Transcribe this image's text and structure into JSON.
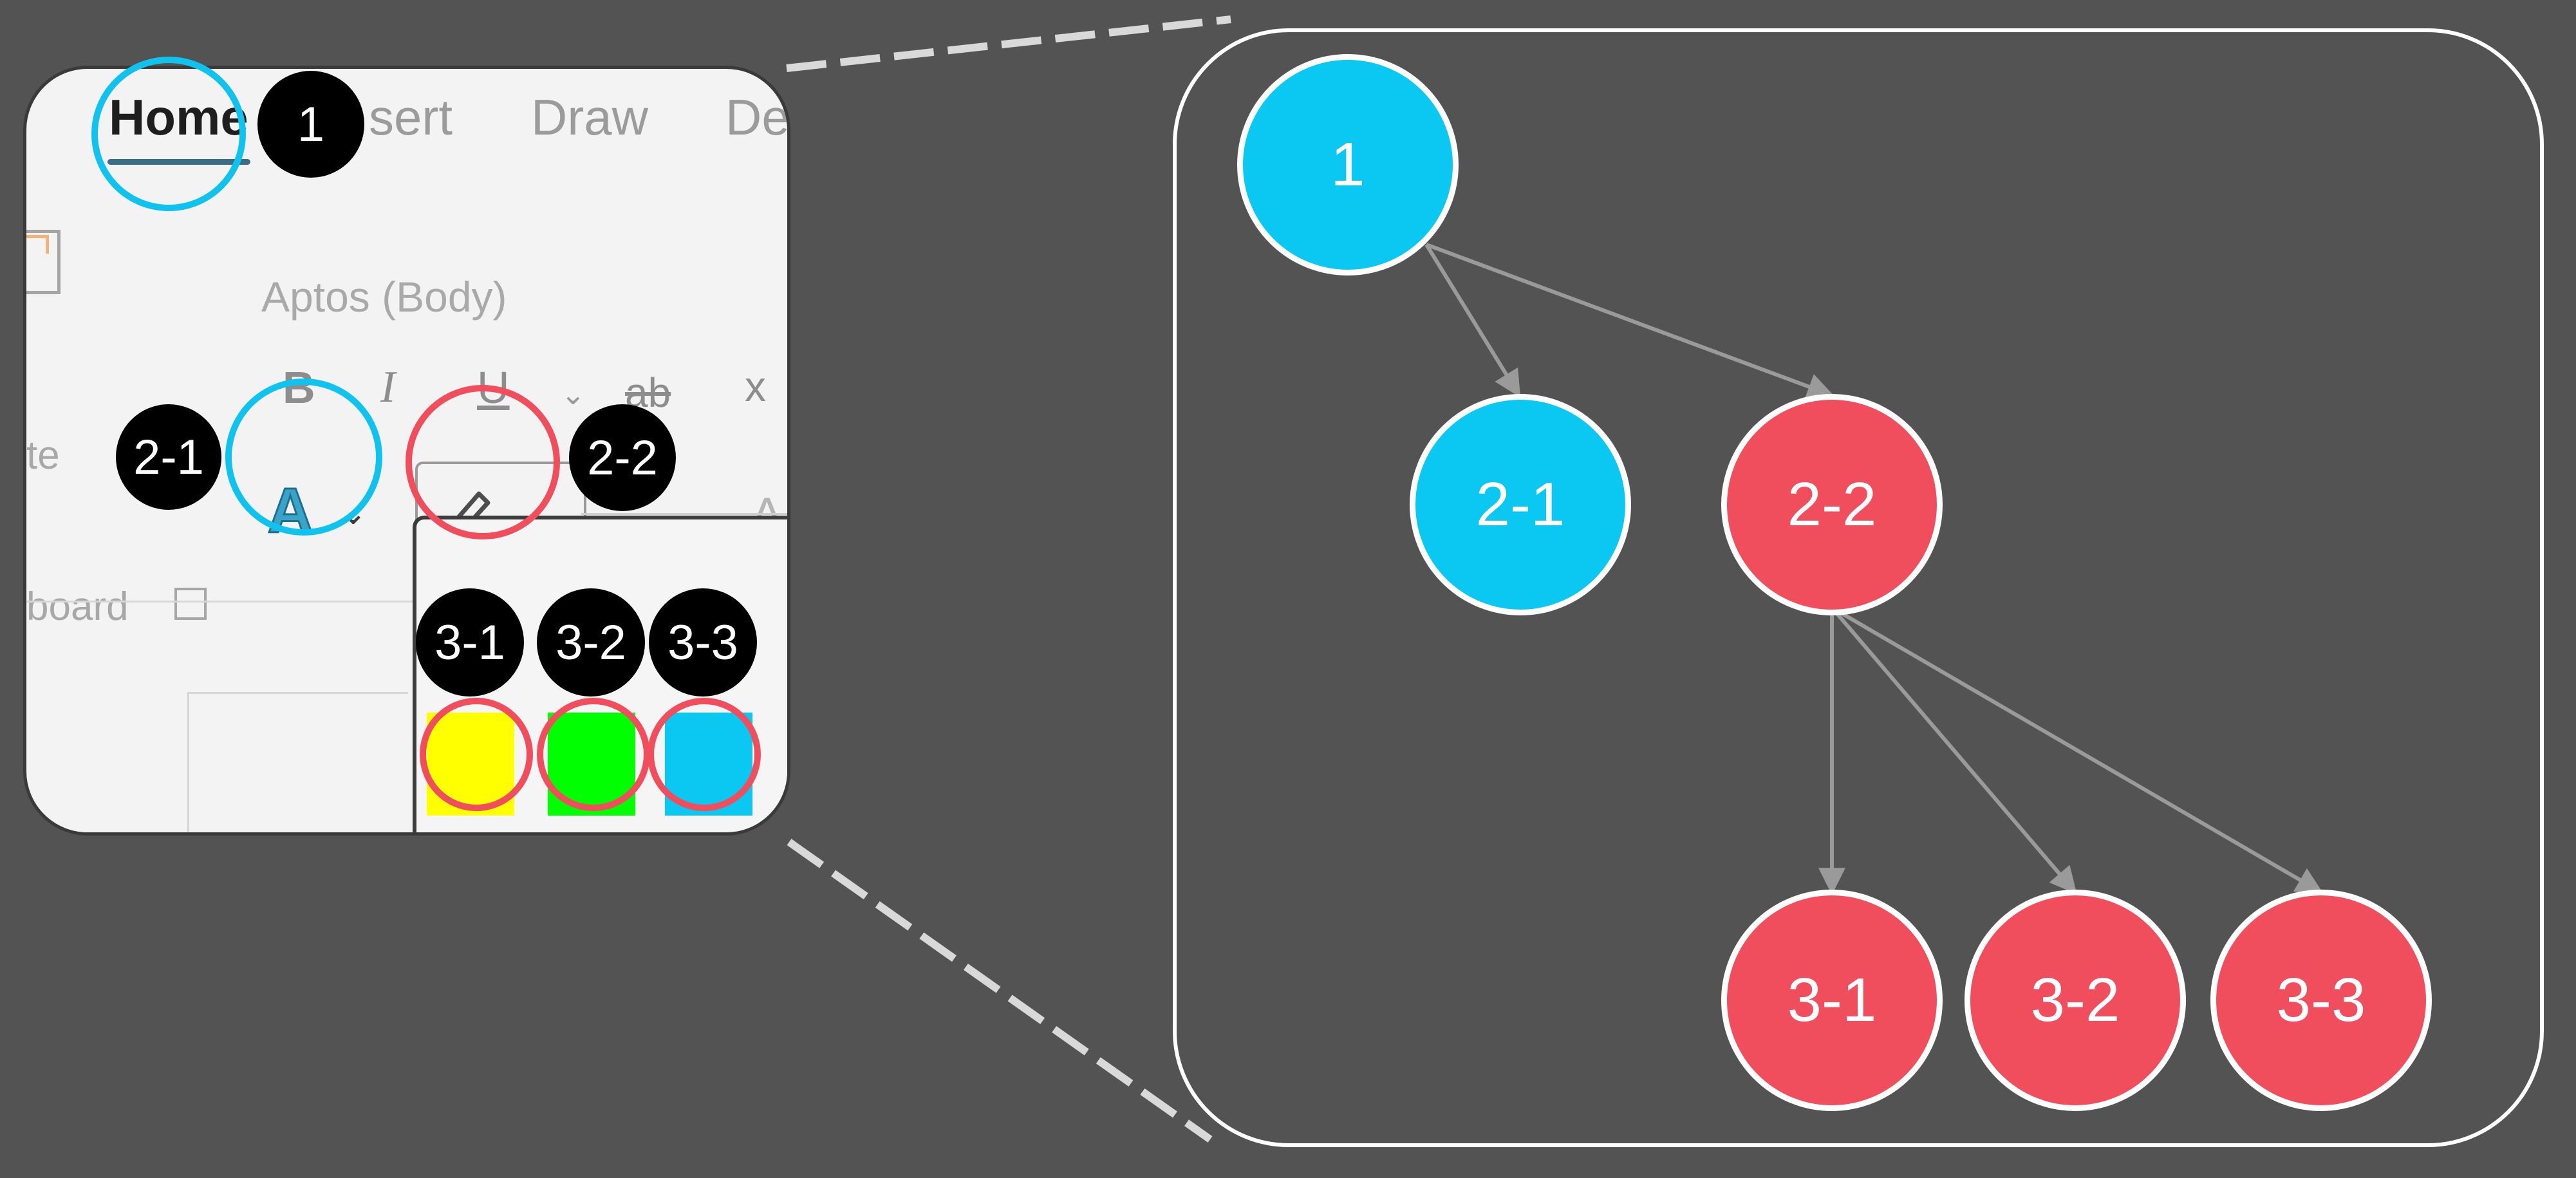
{
  "ribbon": {
    "tabs": [
      "Home",
      "sert",
      "Draw",
      "De"
    ],
    "font_name": "Aptos (Body)",
    "format_buttons": [
      "B",
      "I",
      "U",
      "ab",
      "x"
    ],
    "font_color_glyph": "A",
    "extra_glyph": "A",
    "paste_label": "te",
    "clipboard_label": "board",
    "highlight_colors": [
      "yellow",
      "green",
      "blue"
    ]
  },
  "badges": {
    "b1": "1",
    "b21": "2-1",
    "b22": "2-2",
    "b31": "3-1",
    "b32": "3-2",
    "b33": "3-3"
  },
  "tree": {
    "n1": "1",
    "n21": "2-1",
    "n22": "2-2",
    "n31": "3-1",
    "n32": "3-2",
    "n33": "3-3"
  },
  "colors": {
    "blue": "#0ac8f2",
    "red": "#f04e5c",
    "yellow": "#ffff00",
    "green": "#00ff00",
    "background": "#535353"
  }
}
